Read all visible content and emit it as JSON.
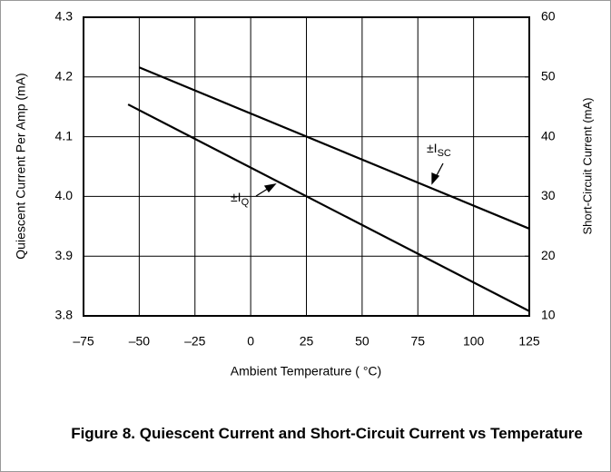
{
  "chart_data": {
    "type": "line",
    "xlabel": "Ambient Temperature ( °C)",
    "ylabel": "Quiescent Current Per Amp (mA)",
    "y2label": "Short-Circuit Current (mA)",
    "caption": "Figure 8. Quiescent Current and Short-Circuit Current vs Temperature",
    "xlim": [
      -75,
      125
    ],
    "xticks": [
      {
        "value": -75,
        "label": "–75"
      },
      {
        "value": -50,
        "label": "–50"
      },
      {
        "value": -25,
        "label": "–25"
      },
      0,
      25,
      50,
      75,
      100,
      125
    ],
    "ylim": [
      3.8,
      4.3
    ],
    "yticks": [
      3.8,
      3.9,
      {
        "value": 4,
        "label": "4.0"
      },
      4.1,
      4.2,
      4.3
    ],
    "y2lim": [
      10,
      60
    ],
    "y2ticks": [
      10,
      20,
      30,
      40,
      50,
      60
    ],
    "grid": true,
    "series": [
      {
        "name": "±IQ",
        "color": "#000000",
        "axis": "y",
        "x": [
          -55,
          125
        ],
        "values": [
          4.154,
          3.808
        ]
      },
      {
        "name": "±ISC",
        "color": "#000000",
        "axis": "y2",
        "x": [
          -50,
          125
        ],
        "values": [
          51.6,
          24.6
        ]
      }
    ],
    "annotations": [
      {
        "text": "±I",
        "sub": "Q"
      },
      {
        "text": "±I",
        "sub": "SC"
      }
    ]
  }
}
